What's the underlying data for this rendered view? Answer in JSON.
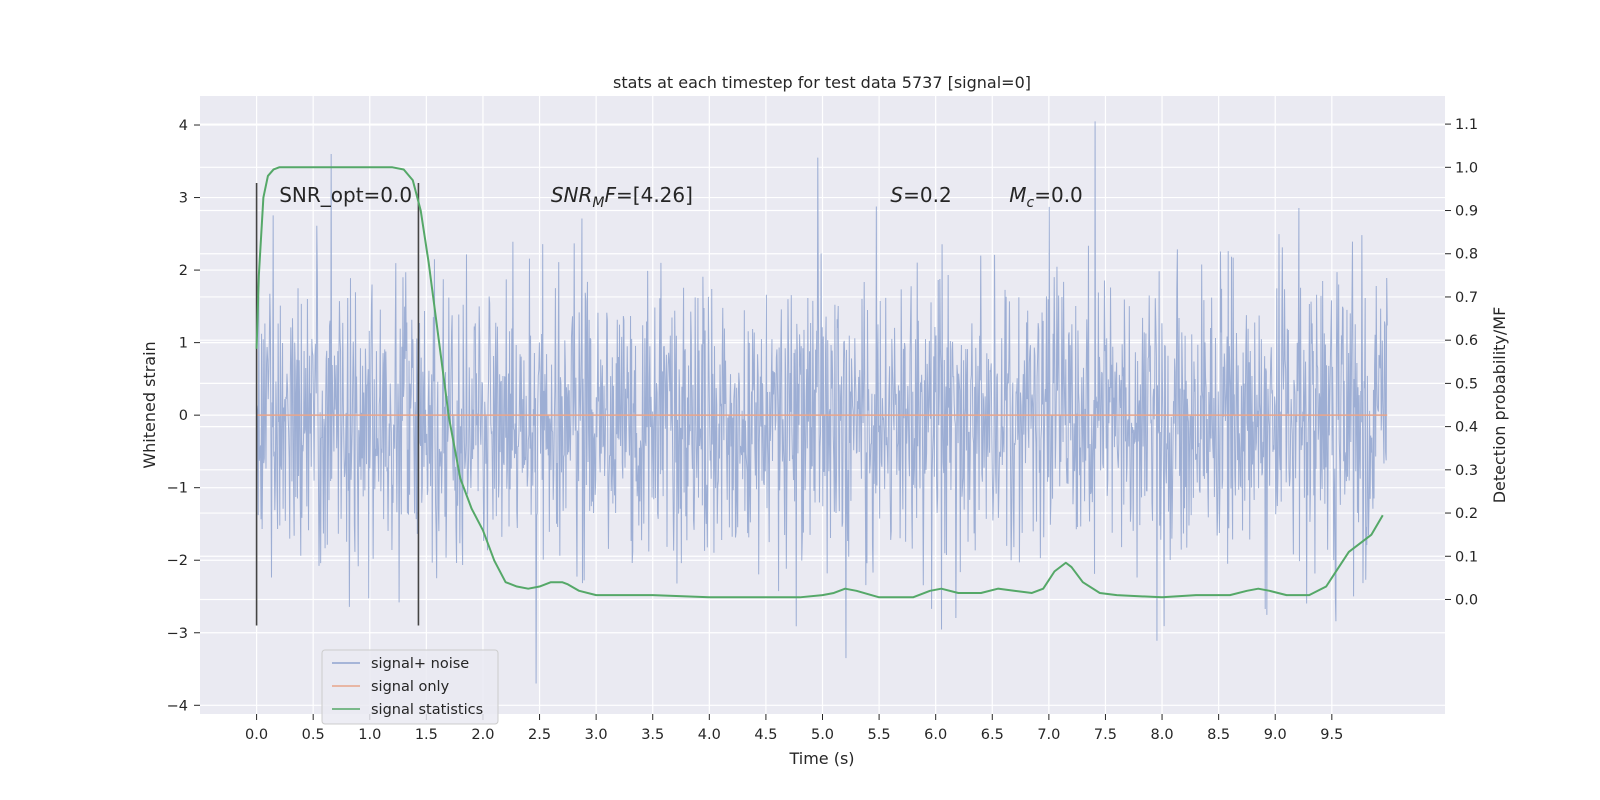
{
  "chart_data": {
    "type": "line",
    "title": "stats at each timestep for test data 5737 [signal=0]",
    "xlabel": "Time (s)",
    "ylabel_left": "Whitened strain",
    "ylabel_right": "Detection probability/MF",
    "xlim": [
      -0.5,
      10.5
    ],
    "ylim_left": [
      -4.12,
      4.4
    ],
    "ylim_right": [
      -0.265,
      1.165
    ],
    "grid": true,
    "x_ticks": [
      0.0,
      0.5,
      1.0,
      1.5,
      2.0,
      2.5,
      3.0,
      3.5,
      4.0,
      4.5,
      5.0,
      5.5,
      6.0,
      6.5,
      7.0,
      7.5,
      8.0,
      8.5,
      9.0,
      9.5
    ],
    "x_tick_labels": [
      "0.0",
      "0.5",
      "1.0",
      "1.5",
      "2.0",
      "2.5",
      "3.0",
      "3.5",
      "4.0",
      "4.5",
      "5.0",
      "5.5",
      "6.0",
      "6.5",
      "7.0",
      "7.5",
      "8.0",
      "8.5",
      "9.0",
      "9.5"
    ],
    "y_left_ticks": [
      4,
      3,
      2,
      1,
      0,
      -1,
      -2,
      -3,
      -4
    ],
    "y_left_tick_labels": [
      "4",
      "3",
      "2",
      "1",
      "0",
      "−1",
      "−2",
      "−3",
      "−4"
    ],
    "y_right_ticks": [
      1.1,
      1.0,
      0.9,
      0.8,
      0.7,
      0.6,
      0.5,
      0.4,
      0.3,
      0.2,
      0.1,
      0.0
    ],
    "y_right_tick_labels": [
      "1.1",
      "1.0",
      "0.9",
      "0.8",
      "0.7",
      "0.6",
      "0.5",
      "0.4",
      "0.3",
      "0.2",
      "0.1",
      "0.0"
    ],
    "legend_position": "bottom-left",
    "legend": [
      {
        "label": "signal+ noise",
        "color": "#8fa3cf"
      },
      {
        "label": "signal only",
        "color": "#e8a58a"
      },
      {
        "label": "signal statistics",
        "color": "#55a868"
      }
    ],
    "noise_series": {
      "name": "signal+ noise",
      "x_range": [
        0.0,
        9.99
      ],
      "samples": 2048,
      "typical_abs_max": 2.6,
      "peak_max": 4.05,
      "peak_min": -3.7
    },
    "signal_series": {
      "name": "signal only",
      "x": [
        0.0,
        9.99
      ],
      "y": [
        0.0,
        0.0
      ]
    },
    "statistics_series": {
      "name": "signal statistics",
      "axis": "right",
      "x": [
        0.0,
        0.02,
        0.06,
        0.1,
        0.15,
        0.2,
        0.3,
        0.5,
        0.8,
        1.0,
        1.2,
        1.3,
        1.38,
        1.45,
        1.52,
        1.6,
        1.7,
        1.8,
        1.9,
        2.0,
        2.1,
        2.2,
        2.3,
        2.4,
        2.5,
        2.6,
        2.7,
        2.75,
        2.85,
        3.0,
        3.2,
        3.5,
        4.0,
        4.5,
        4.8,
        5.0,
        5.1,
        5.2,
        5.3,
        5.5,
        5.8,
        5.95,
        6.05,
        6.2,
        6.4,
        6.55,
        6.7,
        6.85,
        6.95,
        7.05,
        7.15,
        7.2,
        7.3,
        7.45,
        7.6,
        8.0,
        8.3,
        8.6,
        8.75,
        8.85,
        8.95,
        9.1,
        9.3,
        9.45,
        9.55,
        9.65,
        9.75,
        9.85,
        9.95
      ],
      "y": [
        0.58,
        0.75,
        0.93,
        0.98,
        0.995,
        1.0,
        1.0,
        1.0,
        1.0,
        1.0,
        1.0,
        0.995,
        0.97,
        0.9,
        0.78,
        0.62,
        0.42,
        0.28,
        0.21,
        0.16,
        0.09,
        0.04,
        0.03,
        0.025,
        0.03,
        0.04,
        0.04,
        0.035,
        0.02,
        0.01,
        0.01,
        0.01,
        0.005,
        0.005,
        0.005,
        0.01,
        0.015,
        0.025,
        0.02,
        0.005,
        0.005,
        0.02,
        0.025,
        0.015,
        0.015,
        0.025,
        0.02,
        0.015,
        0.025,
        0.065,
        0.085,
        0.075,
        0.04,
        0.015,
        0.01,
        0.005,
        0.01,
        0.01,
        0.02,
        0.025,
        0.02,
        0.01,
        0.01,
        0.03,
        0.07,
        0.11,
        0.13,
        0.15,
        0.195
      ]
    },
    "vertical_markers": [
      {
        "x": 0.0,
        "y_range": [
          -2.9,
          3.2
        ]
      },
      {
        "x": 1.43,
        "y_range": [
          -2.9,
          3.2
        ]
      }
    ],
    "annotations": [
      {
        "text": "SNR_opt=0.0",
        "x": 0.2,
        "y": 3.05
      },
      {
        "text_main": "SNR",
        "text_sub": "M",
        "text_tail": "F=[4.26]",
        "italic_part": "SNR",
        "x": 2.6,
        "y": 3.05
      },
      {
        "text_main": "S",
        "text_sub": "",
        "text_tail": "=0.2",
        "italic_part": "S",
        "x": 5.6,
        "y": 3.05
      },
      {
        "text_main": "M",
        "text_sub": "c",
        "text_tail": "=0.0",
        "italic_part": "M",
        "x": 6.65,
        "y": 3.05
      }
    ],
    "colors": {
      "plot_background": "#eaeaf2",
      "grid": "#ffffff",
      "text": "#262626",
      "noise": "#8fa3cf",
      "signal": "#e8a58a",
      "statistics": "#55a868",
      "marker": "#444444"
    }
  }
}
